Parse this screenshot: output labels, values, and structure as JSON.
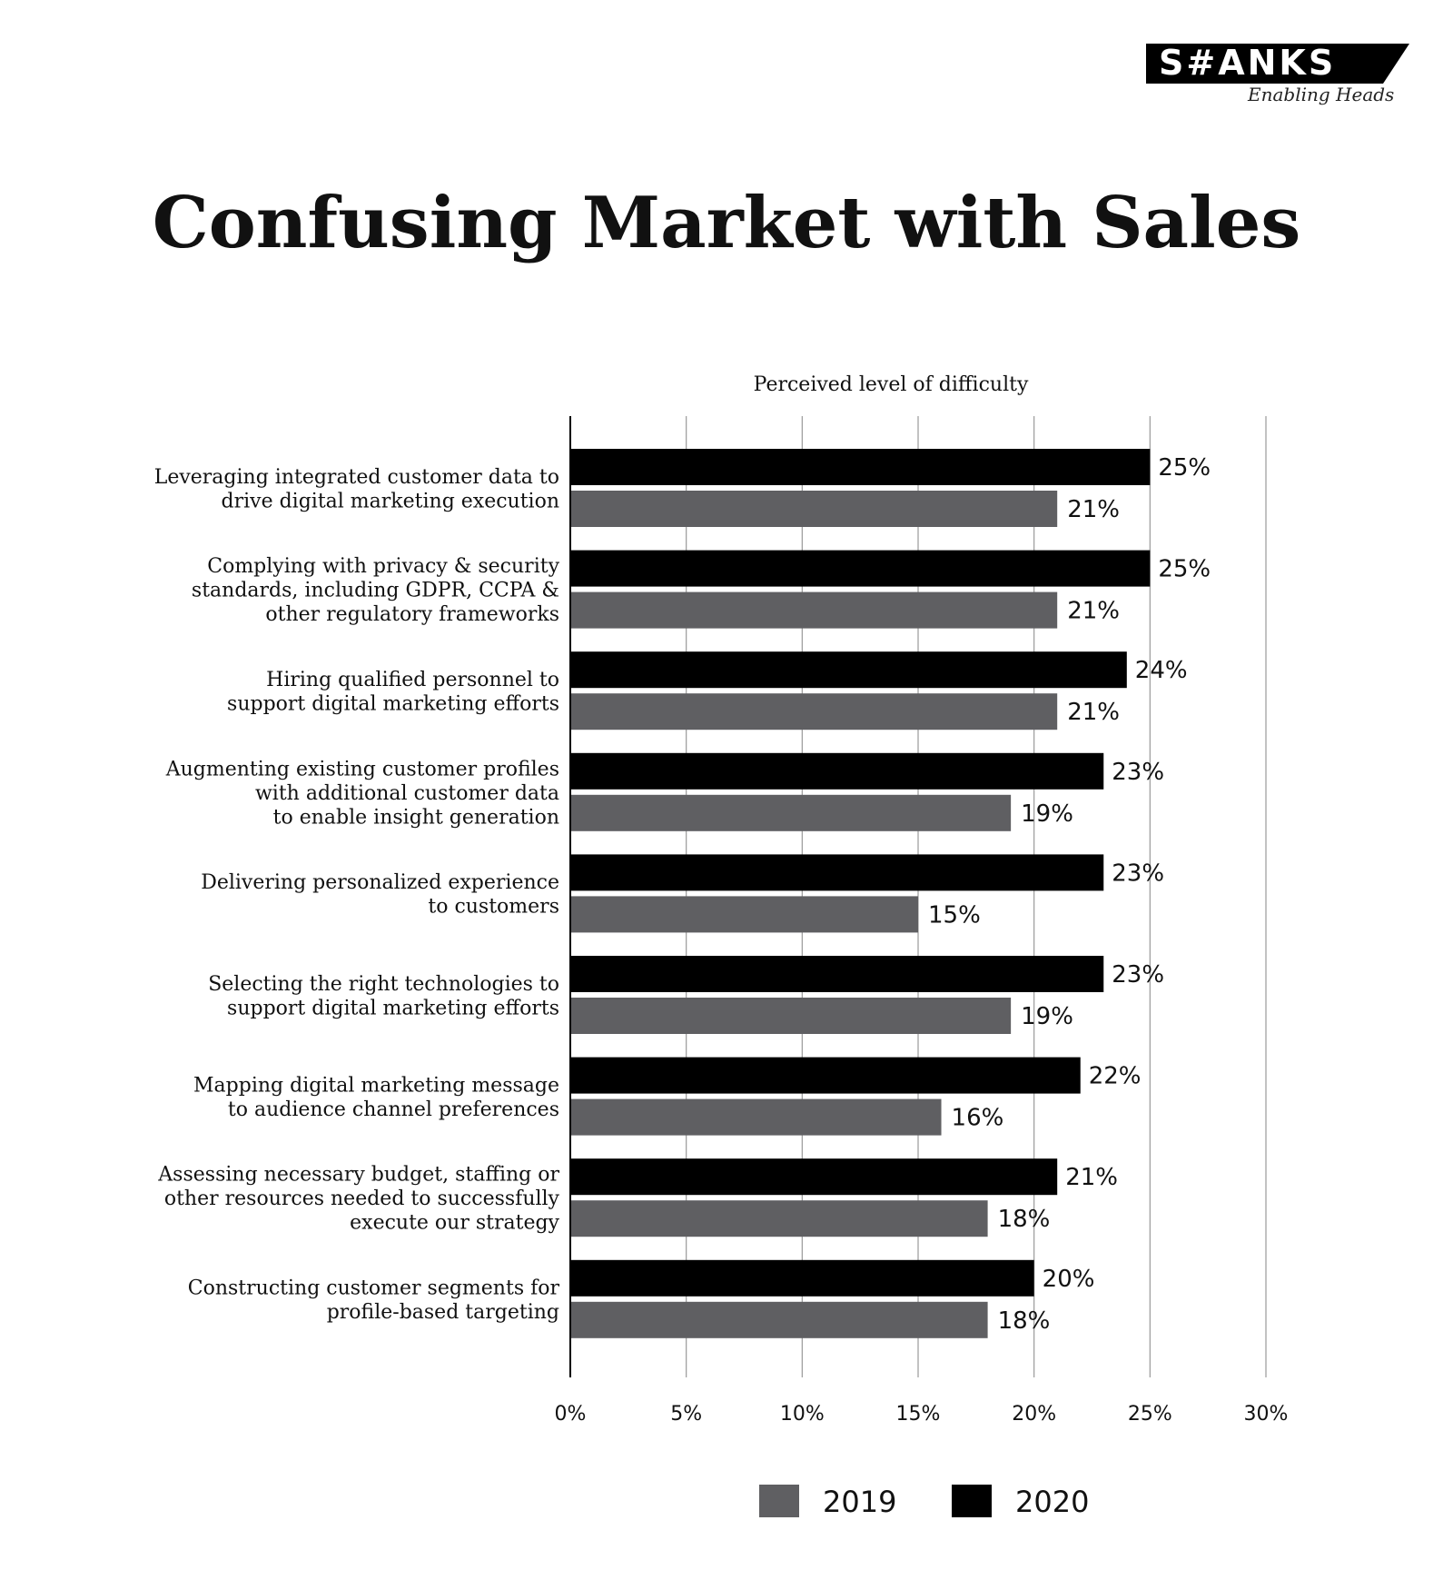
{
  "logo": {
    "brand": "S#ANKS",
    "tagline": "Enabling Heads"
  },
  "chart_data": {
    "type": "bar",
    "orientation": "horizontal",
    "title": "Confusing Market with Sales",
    "xlabel": "Perceived level of difficulty",
    "ylabel": "",
    "xlim": [
      0,
      30
    ],
    "xticks": [
      0,
      5,
      10,
      15,
      20,
      25,
      30
    ],
    "tick_suffix": "%",
    "grid": true,
    "legend_position": "bottom-center",
    "categories": [
      [
        "Leveraging integrated customer data to",
        "drive digital marketing execution"
      ],
      [
        "Complying with privacy & security",
        "standards, including GDPR, CCPA &",
        "other regulatory frameworks"
      ],
      [
        "Hiring qualified personnel to",
        "support digital marketing efforts"
      ],
      [
        "Augmenting existing customer profiles",
        "with additional customer data",
        "to enable insight generation"
      ],
      [
        "Delivering personalized experience",
        "to customers"
      ],
      [
        "Selecting the right technologies to",
        "support digital marketing efforts"
      ],
      [
        "Mapping digital marketing message",
        "to audience channel preferences"
      ],
      [
        "Assessing necessary budget, staffing or",
        "other resources needed to successfully",
        "execute our strategy"
      ],
      [
        "Constructing customer segments for",
        "profile-based targeting"
      ]
    ],
    "series": [
      {
        "name": "2020",
        "color": "#000000",
        "values": [
          25,
          25,
          24,
          23,
          23,
          23,
          22,
          21,
          20
        ],
        "labels": [
          "25%",
          "25%",
          "24%",
          "23%",
          "23%",
          "23%",
          "22%",
          "21%",
          "20%"
        ]
      },
      {
        "name": "2019",
        "color": "#5f5f62",
        "values": [
          21,
          21,
          21,
          19,
          15,
          19,
          16,
          18,
          18
        ],
        "labels": [
          "21%",
          "21%",
          "21%",
          "19%",
          "15%",
          "19%",
          "16%",
          "18%",
          "18%"
        ]
      }
    ],
    "legend_order": [
      "2019",
      "2020"
    ]
  }
}
